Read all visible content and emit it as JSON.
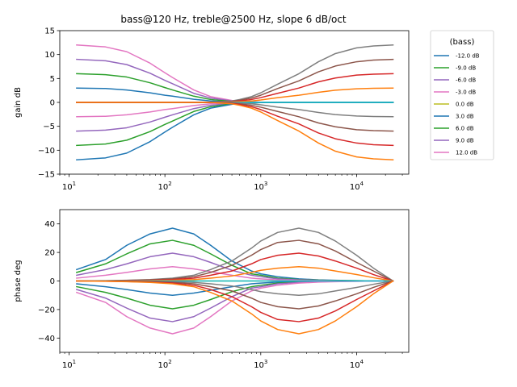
{
  "chart_data": [
    {
      "type": "line",
      "title": "bass@120 Hz, treble@2500 Hz, slope 6 dB/oct",
      "xlabel": "",
      "ylabel": "gain dB",
      "xscale": "log",
      "xlim": [
        8,
        35000
      ],
      "ylim": [
        -15,
        15
      ],
      "xticks": [
        {
          "base": "10",
          "exp": "1",
          "value": 10
        },
        {
          "base": "10",
          "exp": "2",
          "value": 100
        },
        {
          "base": "10",
          "exp": "3",
          "value": 1000
        },
        {
          "base": "10",
          "exp": "4",
          "value": 10000
        }
      ],
      "yticks": [
        "15",
        "10",
        "5",
        "0",
        "−5",
        "−10",
        "−15"
      ],
      "ytick_values": [
        15,
        10,
        5,
        0,
        -5,
        -10,
        -15
      ],
      "legend": {
        "title": "(bass)",
        "placement": "outside-right",
        "entries": [
          {
            "label": "-12.0 dB",
            "color": "#1f77b4"
          },
          {
            "label": "-9.0 dB",
            "color": "#2ca02c"
          },
          {
            "label": "-6.0 dB",
            "color": "#9467bd"
          },
          {
            "label": "-3.0 dB",
            "color": "#e377c2"
          },
          {
            "label": "0.0 dB",
            "color": "#bcbd22"
          },
          {
            "label": "3.0 dB",
            "color": "#1f77b4"
          },
          {
            "label": "6.0 dB",
            "color": "#2ca02c"
          },
          {
            "label": "9.0 dB",
            "color": "#9467bd"
          },
          {
            "label": "12.0 dB",
            "color": "#e377c2"
          }
        ]
      },
      "x": [
        12,
        24,
        40,
        70,
        100,
        120,
        200,
        300,
        500,
        600,
        800,
        1000,
        1500,
        2500,
        4000,
        6000,
        10000,
        15000,
        24000
      ],
      "series": [
        {
          "color": "#e377c2",
          "values": [
            12,
            11.6,
            10.6,
            8.2,
            6.2,
            5.2,
            2.6,
            1.2,
            0.4,
            0.2,
            0.1,
            0.05,
            0,
            0,
            0,
            0,
            0,
            0,
            0
          ]
        },
        {
          "color": "#9467bd",
          "values": [
            9,
            8.7,
            7.9,
            6.1,
            4.6,
            3.9,
            1.9,
            0.9,
            0.3,
            0.15,
            0.08,
            0.04,
            0,
            0,
            0,
            0,
            0,
            0,
            0
          ]
        },
        {
          "color": "#2ca02c",
          "values": [
            6,
            5.8,
            5.3,
            4.1,
            3.1,
            2.6,
            1.3,
            0.6,
            0.2,
            0.1,
            0.05,
            0.03,
            0,
            0,
            0,
            0,
            0,
            0,
            0
          ]
        },
        {
          "color": "#1f77b4",
          "values": [
            3,
            2.9,
            2.6,
            2.0,
            1.5,
            1.3,
            0.65,
            0.3,
            0.1,
            0.05,
            0.03,
            0.02,
            0,
            0,
            0,
            0,
            0,
            0,
            0
          ]
        },
        {
          "color": "#bcbd22",
          "values": [
            0,
            0,
            0,
            0,
            0,
            0,
            0,
            0,
            0,
            0,
            0,
            0,
            0,
            0,
            0,
            0,
            0,
            0,
            0
          ]
        },
        {
          "color": "#e377c2",
          "values": [
            -3,
            -2.9,
            -2.6,
            -2.0,
            -1.5,
            -1.3,
            -0.65,
            -0.3,
            -0.1,
            -0.05,
            -0.03,
            -0.02,
            0,
            0,
            0,
            0,
            0,
            0,
            0
          ]
        },
        {
          "color": "#9467bd",
          "values": [
            -6,
            -5.8,
            -5.3,
            -4.1,
            -3.1,
            -2.6,
            -1.3,
            -0.6,
            -0.2,
            -0.1,
            -0.05,
            -0.03,
            0,
            0,
            0,
            0,
            0,
            0,
            0
          ]
        },
        {
          "color": "#2ca02c",
          "values": [
            -9,
            -8.7,
            -7.9,
            -6.1,
            -4.6,
            -3.9,
            -1.9,
            -0.9,
            -0.3,
            -0.15,
            -0.08,
            -0.04,
            0,
            0,
            0,
            0,
            0,
            0,
            0
          ]
        },
        {
          "color": "#1f77b4",
          "values": [
            -12,
            -11.6,
            -10.6,
            -8.2,
            -6.2,
            -5.2,
            -2.6,
            -1.2,
            -0.4,
            -0.2,
            -0.1,
            -0.05,
            0,
            0,
            0,
            0,
            0,
            0,
            0
          ]
        },
        {
          "color": "#7f7f7f",
          "values": [
            0,
            0,
            0,
            0,
            0,
            0,
            0,
            0,
            0.3,
            0.6,
            1.2,
            2.0,
            3.8,
            6.0,
            8.5,
            10.2,
            11.4,
            11.8,
            12
          ]
        },
        {
          "color": "#8c564b",
          "values": [
            0,
            0,
            0,
            0,
            0,
            0,
            0,
            0,
            0.22,
            0.45,
            0.9,
            1.5,
            2.9,
            4.5,
            6.4,
            7.6,
            8.5,
            8.85,
            9
          ]
        },
        {
          "color": "#d62728",
          "values": [
            0,
            0,
            0,
            0,
            0,
            0,
            0,
            0,
            0.15,
            0.3,
            0.6,
            1.0,
            1.9,
            3.0,
            4.3,
            5.1,
            5.7,
            5.9,
            6
          ]
        },
        {
          "color": "#ff7f0e",
          "values": [
            0,
            0,
            0,
            0,
            0,
            0,
            0,
            0,
            0.08,
            0.15,
            0.3,
            0.5,
            1.0,
            1.5,
            2.1,
            2.55,
            2.85,
            2.95,
            3
          ]
        },
        {
          "color": "#17becf",
          "values": [
            0,
            0,
            0,
            0,
            0,
            0,
            0,
            0,
            0,
            0,
            0,
            0,
            0,
            0,
            0,
            0,
            0,
            0,
            0
          ]
        },
        {
          "color": "#7f7f7f",
          "values": [
            0,
            0,
            0,
            0,
            0,
            0,
            0,
            0,
            -0.08,
            -0.15,
            -0.3,
            -0.5,
            -1.0,
            -1.5,
            -2.1,
            -2.55,
            -2.85,
            -2.95,
            -3
          ]
        },
        {
          "color": "#8c564b",
          "values": [
            0,
            0,
            0,
            0,
            0,
            0,
            0,
            0,
            -0.15,
            -0.3,
            -0.6,
            -1.0,
            -1.9,
            -3.0,
            -4.3,
            -5.1,
            -5.7,
            -5.9,
            -6
          ]
        },
        {
          "color": "#d62728",
          "values": [
            0,
            0,
            0,
            0,
            0,
            0,
            0,
            0,
            -0.22,
            -0.45,
            -0.9,
            -1.5,
            -2.9,
            -4.5,
            -6.4,
            -7.6,
            -8.5,
            -8.85,
            -9
          ]
        },
        {
          "color": "#ff7f0e",
          "values": [
            0,
            0,
            0,
            0,
            0,
            0,
            0,
            0,
            -0.3,
            -0.6,
            -1.2,
            -2.0,
            -3.8,
            -6.0,
            -8.5,
            -10.2,
            -11.4,
            -11.8,
            -12
          ]
        }
      ]
    },
    {
      "type": "line",
      "title": "",
      "xlabel": "",
      "ylabel": "phase deg",
      "xscale": "log",
      "xlim": [
        8,
        35000
      ],
      "ylim": [
        -50,
        50
      ],
      "xticks": [
        {
          "base": "10",
          "exp": "1",
          "value": 10
        },
        {
          "base": "10",
          "exp": "2",
          "value": 100
        },
        {
          "base": "10",
          "exp": "3",
          "value": 1000
        },
        {
          "base": "10",
          "exp": "4",
          "value": 10000
        }
      ],
      "yticks": [
        "40",
        "20",
        "0",
        "−20",
        "−40"
      ],
      "ytick_values": [
        40,
        20,
        0,
        -20,
        -40
      ],
      "x": [
        12,
        24,
        40,
        70,
        120,
        200,
        300,
        500,
        800,
        1000,
        1500,
        2500,
        4000,
        6000,
        10000,
        15000,
        24000
      ],
      "series": [
        {
          "color": "#1f77b4",
          "values": [
            8,
            15,
            25,
            33,
            37,
            33,
            25,
            14,
            7,
            5,
            3,
            1.5,
            0.8,
            0.5,
            0.2,
            0.1,
            0
          ]
        },
        {
          "color": "#2ca02c",
          "values": [
            6,
            12,
            19,
            26,
            28.5,
            25,
            19,
            11,
            5,
            4,
            2,
            1,
            0.6,
            0.3,
            0.2,
            0.1,
            0
          ]
        },
        {
          "color": "#9467bd",
          "values": [
            4,
            8,
            12,
            17,
            19.5,
            17,
            13,
            7.5,
            4,
            3,
            1.5,
            0.8,
            0.4,
            0.2,
            0.1,
            0.05,
            0
          ]
        },
        {
          "color": "#e377c2",
          "values": [
            2,
            4,
            6,
            8.5,
            10,
            8.5,
            6.5,
            4,
            2,
            1.5,
            0.8,
            0.4,
            0.2,
            0.1,
            0.05,
            0,
            0
          ]
        },
        {
          "color": "#bcbd22",
          "values": [
            0,
            0,
            0,
            0,
            0,
            0,
            0,
            0,
            0,
            0,
            0,
            0,
            0,
            0,
            0,
            0,
            0
          ]
        },
        {
          "color": "#1f77b4",
          "values": [
            -2,
            -4,
            -6,
            -8.5,
            -10,
            -8.5,
            -6.5,
            -4,
            -2,
            -1.5,
            -0.8,
            -0.4,
            -0.2,
            -0.1,
            -0.05,
            0,
            0
          ]
        },
        {
          "color": "#2ca02c",
          "values": [
            -4,
            -8,
            -12,
            -17,
            -19.5,
            -17,
            -13,
            -7.5,
            -4,
            -3,
            -1.5,
            -0.8,
            -0.4,
            -0.2,
            -0.1,
            -0.05,
            0
          ]
        },
        {
          "color": "#9467bd",
          "values": [
            -6,
            -12,
            -19,
            -26,
            -28.5,
            -25,
            -19,
            -11,
            -5,
            -4,
            -2,
            -1,
            -0.6,
            -0.3,
            -0.2,
            -0.1,
            0
          ]
        },
        {
          "color": "#e377c2",
          "values": [
            -8,
            -15,
            -25,
            -33,
            -37,
            -33,
            -25,
            -14,
            -7,
            -5,
            -3,
            -1.5,
            -0.8,
            -0.5,
            -0.2,
            -0.1,
            0
          ]
        },
        {
          "color": "#7f7f7f",
          "values": [
            0,
            0.2,
            0.5,
            1,
            2,
            4,
            8,
            14,
            23,
            28,
            34,
            37,
            34,
            28,
            18,
            9,
            0
          ]
        },
        {
          "color": "#8c564b",
          "values": [
            0,
            0.15,
            0.4,
            0.8,
            1.5,
            3,
            6,
            11,
            18,
            22,
            27,
            28.5,
            26,
            21,
            13,
            7,
            0
          ]
        },
        {
          "color": "#d62728",
          "values": [
            0,
            0.1,
            0.25,
            0.5,
            1,
            2,
            4,
            7,
            12,
            15,
            18,
            19.5,
            17.5,
            14,
            9,
            4.5,
            0
          ]
        },
        {
          "color": "#ff7f0e",
          "values": [
            0,
            0.05,
            0.1,
            0.3,
            0.5,
            1,
            2,
            3.5,
            6,
            7.5,
            9,
            10,
            9,
            7,
            4.5,
            2.3,
            0
          ]
        },
        {
          "color": "#17becf",
          "values": [
            0,
            0,
            0,
            0,
            0,
            0,
            0,
            0,
            0,
            0,
            0,
            0,
            0,
            0,
            0,
            0,
            0
          ]
        },
        {
          "color": "#7f7f7f",
          "values": [
            0,
            -0.05,
            -0.1,
            -0.3,
            -0.5,
            -1,
            -2,
            -3.5,
            -6,
            -7.5,
            -9,
            -10,
            -9,
            -7,
            -4.5,
            -2.3,
            0
          ]
        },
        {
          "color": "#8c564b",
          "values": [
            0,
            -0.1,
            -0.25,
            -0.5,
            -1,
            -2,
            -4,
            -7,
            -12,
            -15,
            -18,
            -19.5,
            -17.5,
            -14,
            -9,
            -4.5,
            0
          ]
        },
        {
          "color": "#d62728",
          "values": [
            0,
            -0.15,
            -0.4,
            -0.8,
            -1.5,
            -3,
            -6,
            -11,
            -18,
            -22,
            -27,
            -28.5,
            -26,
            -21,
            -13,
            -7,
            0
          ]
        },
        {
          "color": "#ff7f0e",
          "values": [
            0,
            -0.2,
            -0.5,
            -1,
            -2,
            -4,
            -8,
            -14,
            -23,
            -28,
            -34,
            -37,
            -34,
            -28,
            -18,
            -9,
            0
          ]
        }
      ]
    }
  ]
}
